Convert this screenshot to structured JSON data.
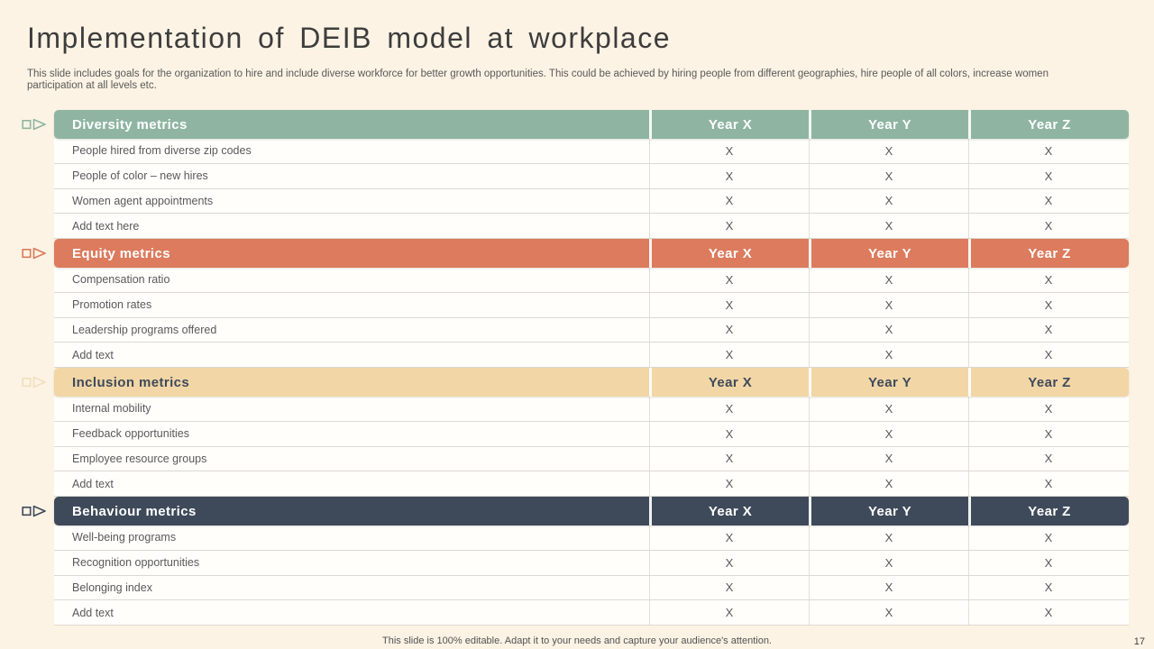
{
  "slide": {
    "title": "Implementation of DEIB model at workplace",
    "subtitle": "This slide includes goals for the organization to hire and include diverse workforce for better growth opportunities. This could be achieved by hiring people from different geographies, hire people of all colors, increase women participation at all levels etc.",
    "footer": "This slide is 100% editable. Adapt it to your needs and capture your audience's attention.",
    "page_number": "17"
  },
  "colors": {
    "background": "#fcf3e4",
    "diversity_green": "#8fb5a2",
    "equity_orange": "#dc7b5d",
    "inclusion_tan": "#f2d6a6",
    "behaviour_navy": "#3e4a5a",
    "row_text": "#595959"
  },
  "table": {
    "year_columns": [
      "Year X",
      "Year Y",
      "Year Z"
    ],
    "sections": [
      {
        "label": "Diversity metrics",
        "header_bg": "#8fb5a2",
        "header_text_color": "#ffffff",
        "bullet_color": "#8fb5a2",
        "rows": [
          {
            "label": "People hired from diverse zip codes",
            "values": [
              "X",
              "X",
              "X"
            ]
          },
          {
            "label": "People of color – new hires",
            "values": [
              "X",
              "X",
              "X"
            ]
          },
          {
            "label": "Women agent appointments",
            "values": [
              "X",
              "X",
              "X"
            ]
          },
          {
            "label": "Add text here",
            "values": [
              "X",
              "X",
              "X"
            ]
          }
        ]
      },
      {
        "label": "Equity metrics",
        "header_bg": "#dc7b5d",
        "header_text_color": "#ffffff",
        "bullet_color": "#dc7b5d",
        "rows": [
          {
            "label": "Compensation ratio",
            "values": [
              "X",
              "X",
              "X"
            ]
          },
          {
            "label": "Promotion rates",
            "values": [
              "X",
              "X",
              "X"
            ]
          },
          {
            "label": "Leadership programs offered",
            "values": [
              "X",
              "X",
              "X"
            ]
          },
          {
            "label": "Add text",
            "values": [
              "X",
              "X",
              "X"
            ]
          }
        ]
      },
      {
        "label": "Inclusion metrics",
        "header_bg": "#f2d6a6",
        "header_text_color": "#3e4a5a",
        "bullet_color": "#f1dfbd",
        "rows": [
          {
            "label": "Internal mobility",
            "values": [
              "X",
              "X",
              "X"
            ]
          },
          {
            "label": "Feedback opportunities",
            "values": [
              "X",
              "X",
              "X"
            ]
          },
          {
            "label": "Employee resource groups",
            "values": [
              "X",
              "X",
              "X"
            ]
          },
          {
            "label": "Add text",
            "values": [
              "X",
              "X",
              "X"
            ]
          }
        ]
      },
      {
        "label": "Behaviour metrics",
        "header_bg": "#3e4a5a",
        "header_text_color": "#ffffff",
        "bullet_color": "#3e4a5a",
        "rows": [
          {
            "label": "Well-being programs",
            "values": [
              "X",
              "X",
              "X"
            ]
          },
          {
            "label": "Recognition opportunities",
            "values": [
              "X",
              "X",
              "X"
            ]
          },
          {
            "label": "Belonging index",
            "values": [
              "X",
              "X",
              "X"
            ]
          },
          {
            "label": "Add text",
            "values": [
              "X",
              "X",
              "X"
            ]
          }
        ]
      }
    ]
  }
}
